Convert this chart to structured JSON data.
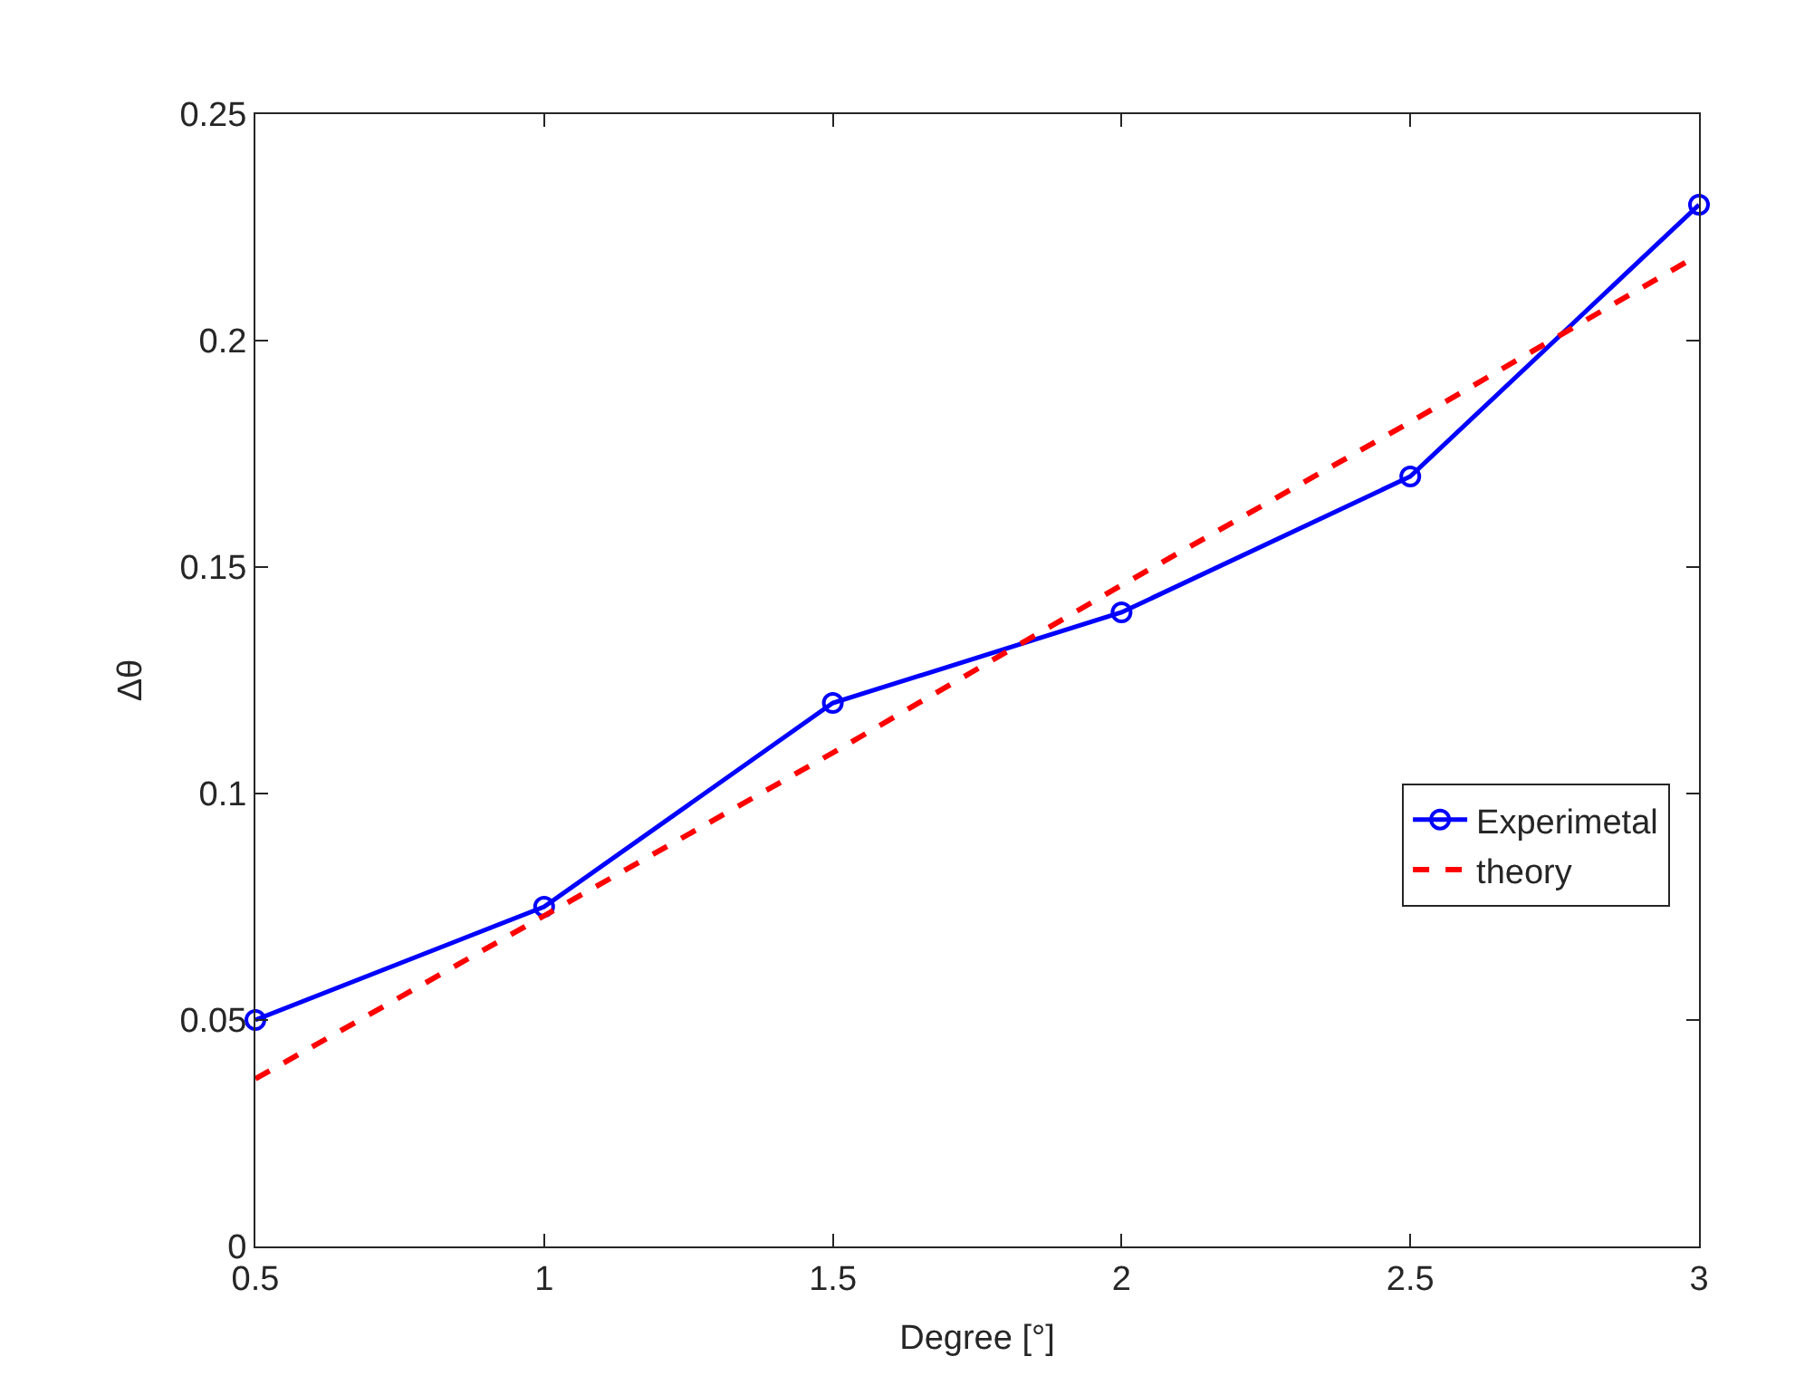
{
  "chart_data": {
    "type": "line",
    "xlabel": "Degree [°]",
    "ylabel": "Δθ",
    "x": [
      0.5,
      1,
      1.5,
      2,
      2.5,
      3
    ],
    "series": [
      {
        "name": "Experimetal",
        "color": "#0000ff",
        "values": [
          0.05,
          0.075,
          0.12,
          0.14,
          0.17,
          0.23
        ],
        "marker": "circle",
        "line_style": "solid"
      },
      {
        "name": "theory",
        "color": "#ff0000",
        "values": [
          0.037,
          0.073,
          0.109,
          0.146,
          0.182,
          0.219
        ],
        "marker": "none",
        "line_style": "dashed"
      }
    ],
    "xlim": [
      0.5,
      3
    ],
    "xticks": [
      0.5,
      1,
      1.5,
      2,
      2.5,
      3
    ],
    "ylim": [
      0,
      0.25
    ],
    "yticks": [
      0,
      0.05,
      0.1,
      0.15,
      0.2,
      0.25
    ],
    "grid": false,
    "legend": "bottom right"
  }
}
